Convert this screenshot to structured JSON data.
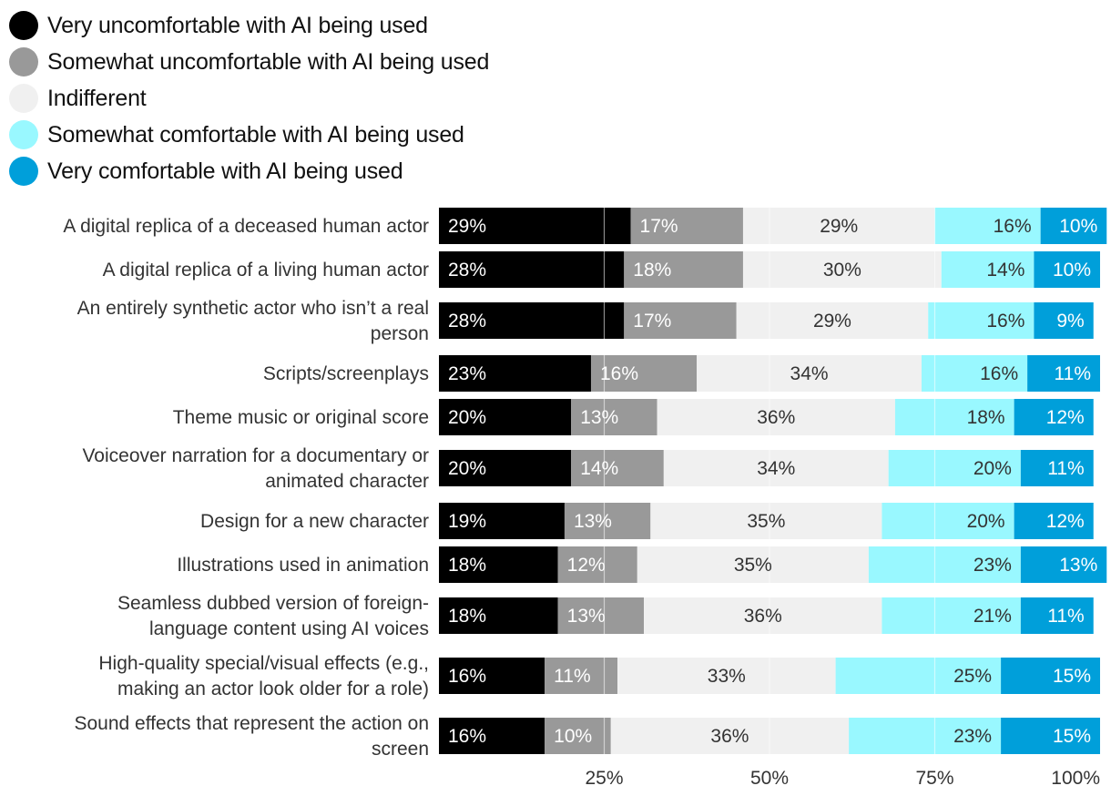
{
  "chart_data": {
    "type": "bar",
    "orientation": "horizontal",
    "stacked": true,
    "title": "",
    "xlabel": "",
    "ylabel": "",
    "xlim": [
      0,
      100
    ],
    "legend_position": "top-left",
    "series": [
      {
        "name": "Very uncomfortable with AI being used",
        "color": "#000000",
        "values": [
          29,
          28,
          28,
          23,
          20,
          20,
          19,
          18,
          18,
          16,
          16
        ]
      },
      {
        "name": "Somewhat uncomfortable with AI being used",
        "color": "#999999",
        "values": [
          17,
          18,
          17,
          16,
          13,
          14,
          13,
          12,
          13,
          11,
          10
        ]
      },
      {
        "name": "Indifferent",
        "color": "#f0f0f0",
        "values": [
          29,
          30,
          29,
          34,
          36,
          34,
          35,
          35,
          36,
          33,
          36
        ]
      },
      {
        "name": "Somewhat comfortable with AI being used",
        "color": "#99f8ff",
        "values": [
          16,
          14,
          16,
          16,
          18,
          20,
          20,
          23,
          21,
          25,
          23
        ]
      },
      {
        "name": "Very comfortable with AI being used",
        "color": "#009fda",
        "values": [
          10,
          10,
          9,
          11,
          12,
          11,
          12,
          13,
          11,
          15,
          15
        ]
      }
    ],
    "categories": [
      [
        "A digital replica of a deceased human actor"
      ],
      [
        "A digital replica of a living human actor"
      ],
      [
        "An entirely synthetic actor who isn’t a real",
        "person"
      ],
      [
        "Scripts/screenplays"
      ],
      [
        "Theme music or original score"
      ],
      [
        "Voiceover narration for a documentary or",
        "animated character"
      ],
      [
        "Design for a new character"
      ],
      [
        "Illustrations used in animation"
      ],
      [
        "Seamless dubbed version of foreign-",
        "language content using AI voices"
      ],
      [
        "High-quality special/visual effects (e.g.,",
        "making an actor look older for a role)"
      ],
      [
        "Sound effects that represent the action on",
        "screen"
      ]
    ],
    "ticks": [
      {
        "value": 25,
        "label": "25%"
      },
      {
        "value": 50,
        "label": "50%"
      },
      {
        "value": 75,
        "label": "75%"
      },
      {
        "value": 100,
        "label": "100%"
      }
    ]
  }
}
